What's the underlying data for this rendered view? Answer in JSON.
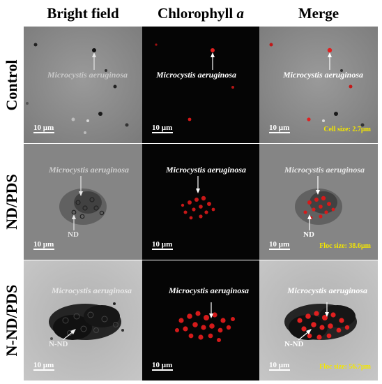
{
  "columns": [
    "Bright field",
    "Chlorophyll",
    "Merge"
  ],
  "column_italic_suffix": "a",
  "rows": [
    "Control",
    "ND/PDS",
    "N-ND/PDS"
  ],
  "species_label": "Microcystis aeruginosa",
  "floc_labels": {
    "nd": "ND",
    "nnd": "N-ND"
  },
  "scale_label": "10 µm",
  "sizes": [
    "Cell size: 2.7µm",
    "Floc size: 38.6µm",
    "Floc size: 56.7µm"
  ]
}
